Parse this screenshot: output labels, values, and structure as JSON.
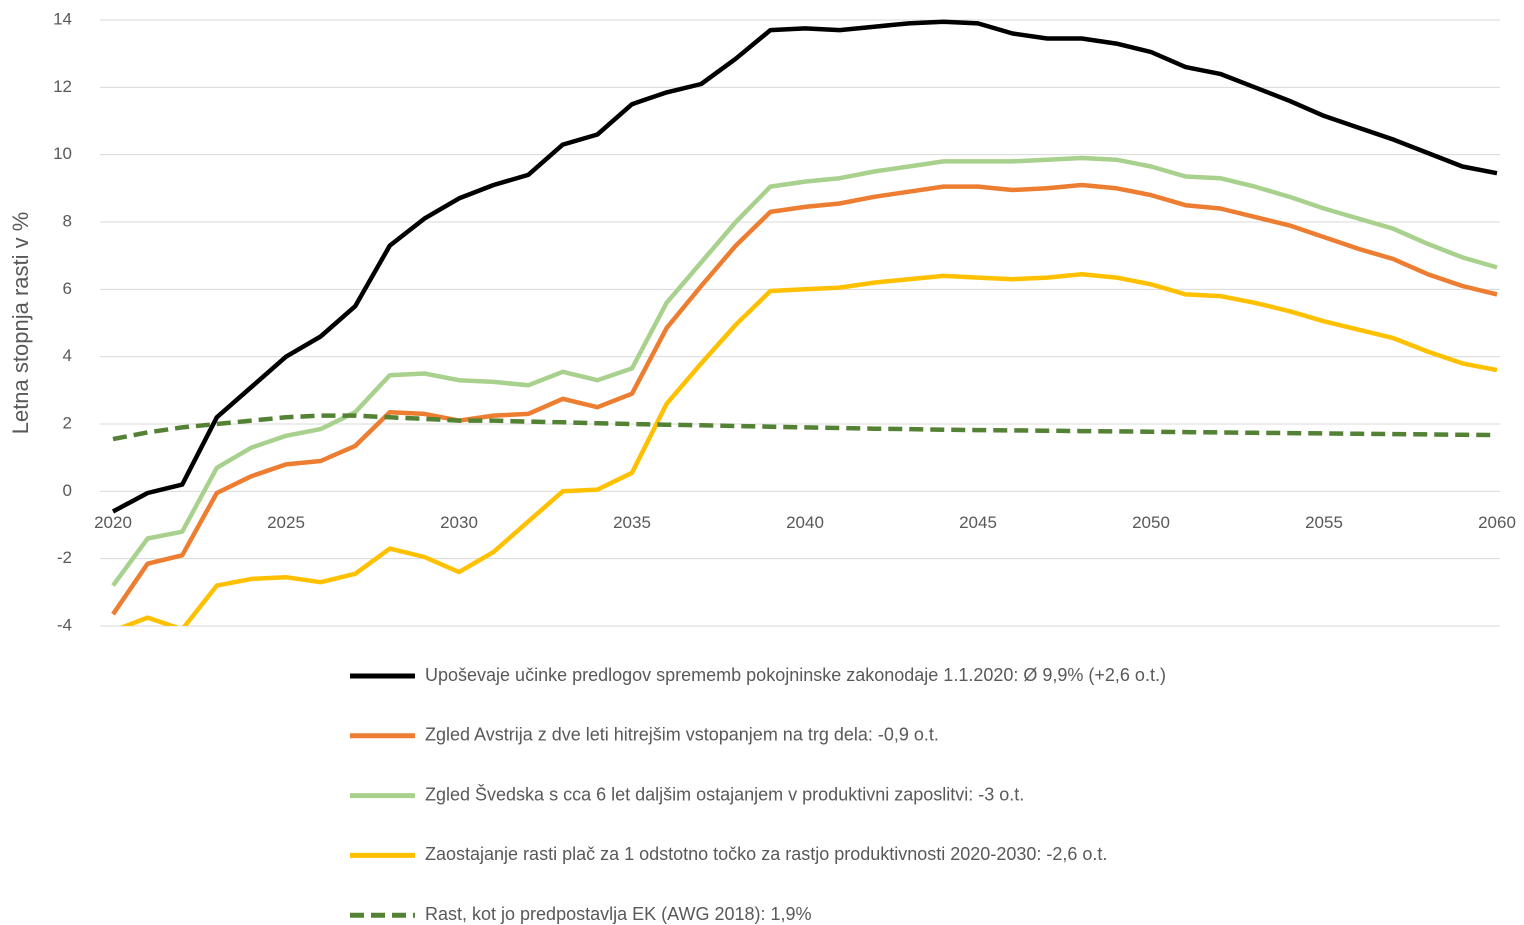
{
  "chart_data": {
    "type": "line",
    "y_label": "Letna stopnja rasti v %",
    "x": [
      2020,
      2021,
      2022,
      2023,
      2024,
      2025,
      2026,
      2027,
      2028,
      2029,
      2030,
      2031,
      2032,
      2033,
      2034,
      2035,
      2036,
      2037,
      2038,
      2039,
      2040,
      2041,
      2042,
      2043,
      2044,
      2045,
      2046,
      2047,
      2048,
      2049,
      2050,
      2051,
      2052,
      2053,
      2054,
      2055,
      2056,
      2057,
      2058,
      2059,
      2060
    ],
    "xlim": [
      2020,
      2060
    ],
    "xticks": [
      2020,
      2025,
      2030,
      2035,
      2040,
      2045,
      2050,
      2055,
      2060
    ],
    "ylim": [
      -4,
      14
    ],
    "yticks": [
      -4,
      -2,
      0,
      2,
      4,
      6,
      8,
      10,
      12,
      14
    ],
    "grid": true,
    "legend": "bottom",
    "series": [
      {
        "name": "Upoševaje učinke predlogov sprememb pokojninske zakonodaje 1.1.2020: Ø 9,9% (+2,6 o.t.)",
        "color": "#000000",
        "dashed": false,
        "values": [
          -0.6,
          -0.05,
          0.2,
          2.2,
          3.1,
          4.0,
          4.6,
          5.5,
          7.3,
          8.1,
          8.7,
          9.1,
          9.4,
          10.3,
          10.6,
          11.5,
          11.85,
          12.1,
          12.85,
          13.7,
          13.75,
          13.7,
          13.8,
          13.9,
          13.95,
          13.9,
          13.6,
          13.45,
          13.45,
          13.3,
          13.05,
          12.6,
          12.4,
          12.0,
          11.6,
          11.15,
          10.8,
          10.45,
          10.05,
          9.65,
          9.45
        ]
      },
      {
        "name": "Zgled Avstrija z dve leti hitrejšim vstopanjem na trg dela: -0,9 o.t.",
        "color": "#ed7d31",
        "dashed": false,
        "values": [
          -3.65,
          -2.15,
          -1.9,
          -0.05,
          0.45,
          0.8,
          0.9,
          1.35,
          2.35,
          2.3,
          2.1,
          2.25,
          2.3,
          2.75,
          2.5,
          2.9,
          4.85,
          6.1,
          7.3,
          8.3,
          8.45,
          8.55,
          8.75,
          8.9,
          9.05,
          9.05,
          8.95,
          9.0,
          9.1,
          9.0,
          8.8,
          8.5,
          8.4,
          8.15,
          7.9,
          7.55,
          7.2,
          6.9,
          6.45,
          6.1,
          5.85
        ]
      },
      {
        "name": "Zgled Švedska s cca 6 let daljšim ostajanjem v produktivni zaposlitvi: -3 o.t.",
        "color": "#a9d18e",
        "dashed": false,
        "values": [
          -2.8,
          -1.4,
          -1.2,
          0.7,
          1.3,
          1.65,
          1.85,
          2.35,
          3.45,
          3.5,
          3.3,
          3.25,
          3.15,
          3.55,
          3.3,
          3.65,
          5.6,
          6.8,
          8.0,
          9.05,
          9.2,
          9.3,
          9.5,
          9.65,
          9.8,
          9.8,
          9.8,
          9.85,
          9.9,
          9.85,
          9.65,
          9.35,
          9.3,
          9.05,
          8.75,
          8.4,
          8.1,
          7.8,
          7.35,
          6.95,
          6.65
        ]
      },
      {
        "name": "Zaostajanje rasti plač za 1 odstotno točko za rastjo produktivnosti 2020-2030: -2,6 o.t.",
        "color": "#ffc000",
        "dashed": false,
        "values": [
          -4.15,
          -3.75,
          -4.1,
          -2.8,
          -2.6,
          -2.55,
          -2.7,
          -2.45,
          -1.7,
          -1.95,
          -2.4,
          -1.8,
          -0.9,
          0.0,
          0.05,
          0.55,
          2.6,
          3.8,
          4.95,
          5.95,
          6.0,
          6.05,
          6.2,
          6.3,
          6.4,
          6.35,
          6.3,
          6.35,
          6.45,
          6.35,
          6.15,
          5.85,
          5.8,
          5.6,
          5.35,
          5.05,
          4.8,
          4.55,
          4.15,
          3.8,
          3.6
        ]
      },
      {
        "name": "Rast, kot jo predpostavlja EK (AWG 2018): 1,9%",
        "color": "#548235",
        "dashed": true,
        "values": [
          1.55,
          1.75,
          1.9,
          2.0,
          2.1,
          2.2,
          2.25,
          2.25,
          2.2,
          2.15,
          2.1,
          2.1,
          2.07,
          2.05,
          2.02,
          2.0,
          1.98,
          1.96,
          1.94,
          1.92,
          1.9,
          1.88,
          1.86,
          1.85,
          1.83,
          1.82,
          1.81,
          1.8,
          1.79,
          1.78,
          1.77,
          1.76,
          1.75,
          1.74,
          1.73,
          1.72,
          1.71,
          1.7,
          1.69,
          1.68,
          1.67
        ]
      }
    ]
  }
}
